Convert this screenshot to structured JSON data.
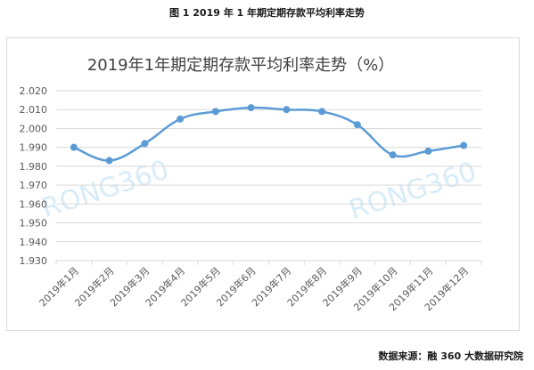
{
  "figure_caption": "图 1  2019 年 1 年期定期存款平均利率走势",
  "source_note": "数据来源：融 360 大数据研究院",
  "watermark": "RONG360",
  "colors": {
    "line": "#5b9bd5",
    "grid": "#d9d9d9",
    "watermark": "#d8ebf8"
  },
  "chart_data": {
    "type": "line",
    "title": "2019年1年期定期存款平均利率走势（%）",
    "xlabel": "",
    "ylabel": "",
    "categories": [
      "2019年1月",
      "2019年2月",
      "2019年3月",
      "2019年4月",
      "2019年5月",
      "2019年6月",
      "2019年7月",
      "2019年8月",
      "2019年9月",
      "2019年10月",
      "2019年11月",
      "2019年12月"
    ],
    "series": [
      {
        "values": [
          1.99,
          1.983,
          1.992,
          2.005,
          2.009,
          2.011,
          2.01,
          2.009,
          2.002,
          1.986,
          1.988,
          1.991
        ]
      }
    ],
    "ylim": [
      1.93,
      2.02
    ],
    "yticks": [
      "2.020",
      "2.010",
      "2.000",
      "1.990",
      "1.980",
      "1.970",
      "1.960",
      "1.950",
      "1.940",
      "1.930"
    ],
    "grid": true,
    "legend": "none"
  }
}
